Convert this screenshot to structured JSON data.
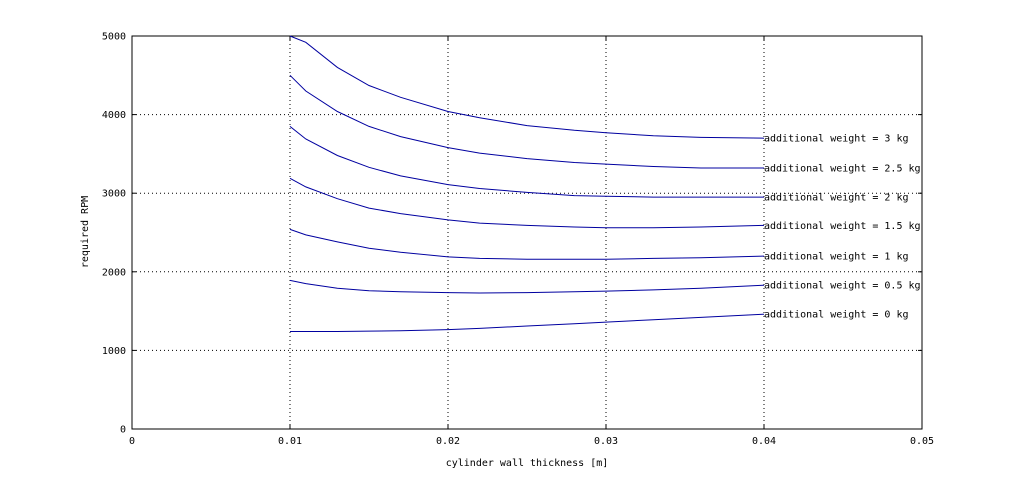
{
  "chart_data": {
    "type": "line",
    "title": "",
    "xlabel": "cylinder wall thickness [m]",
    "ylabel": "required RPM",
    "xlim": [
      0,
      0.05
    ],
    "ylim": [
      0,
      5000
    ],
    "xticks": [
      0,
      0.01,
      0.02,
      0.03,
      0.04,
      0.05
    ],
    "xtick_labels": [
      "0",
      "0.01",
      "0.02",
      "0.03",
      "0.04",
      "0.05"
    ],
    "yticks": [
      0,
      1000,
      2000,
      3000,
      4000,
      5000
    ],
    "ytick_labels": [
      "0",
      "1000",
      "2000",
      "3000",
      "4000",
      "5000"
    ],
    "grid": true,
    "line_color": "#0000a0",
    "x": [
      0.01,
      0.011,
      0.013,
      0.015,
      0.017,
      0.02,
      0.022,
      0.025,
      0.028,
      0.03,
      0.033,
      0.036,
      0.04
    ],
    "series": [
      {
        "name": "additional weight = 0 kg",
        "values": [
          1240,
          1240,
          1240,
          1245,
          1250,
          1265,
          1280,
          1310,
          1340,
          1360,
          1390,
          1420,
          1460
        ]
      },
      {
        "name": "additional weight = 0.5 kg",
        "values": [
          1890,
          1850,
          1790,
          1760,
          1745,
          1735,
          1730,
          1735,
          1745,
          1755,
          1770,
          1790,
          1830
        ]
      },
      {
        "name": "additional weight = 1 kg",
        "values": [
          2540,
          2470,
          2380,
          2300,
          2250,
          2190,
          2170,
          2160,
          2160,
          2160,
          2170,
          2180,
          2200
        ]
      },
      {
        "name": "additional weight = 1.5 kg",
        "values": [
          3190,
          3080,
          2930,
          2810,
          2740,
          2660,
          2620,
          2590,
          2570,
          2560,
          2560,
          2570,
          2590
        ]
      },
      {
        "name": "additional weight = 2 kg",
        "values": [
          3850,
          3690,
          3480,
          3330,
          3220,
          3110,
          3060,
          3010,
          2970,
          2960,
          2950,
          2950,
          2950
        ]
      },
      {
        "name": "additional weight = 2.5 kg",
        "values": [
          4500,
          4300,
          4040,
          3850,
          3720,
          3580,
          3510,
          3440,
          3390,
          3370,
          3340,
          3320,
          3320
        ]
      },
      {
        "name": "additional weight = 3 kg",
        "values": [
          5000,
          4920,
          4600,
          4370,
          4220,
          4040,
          3960,
          3860,
          3800,
          3770,
          3730,
          3710,
          3700
        ]
      }
    ]
  }
}
